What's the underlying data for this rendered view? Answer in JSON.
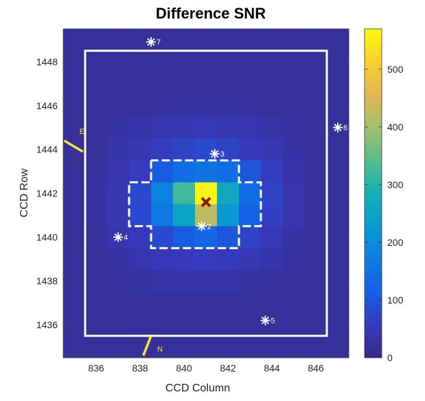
{
  "chart_data": {
    "type": "heatmap",
    "title": "Difference SNR",
    "xlabel": "CCD Column",
    "ylabel": "CCD Row",
    "xlim": [
      834.5,
      847.5
    ],
    "ylim": [
      1434.5,
      1449.5
    ],
    "x_ticks": [
      836,
      838,
      840,
      842,
      844,
      846
    ],
    "y_ticks": [
      1436,
      1438,
      1440,
      1442,
      1444,
      1446,
      1448
    ],
    "colorbar": {
      "ticks": [
        0,
        100,
        200,
        300,
        400,
        500
      ],
      "range": [
        0,
        570
      ]
    },
    "pixel_values": {
      "columns": [
        835,
        836,
        837,
        838,
        839,
        840,
        841,
        842,
        843,
        844,
        845,
        846,
        847
      ],
      "rows": [
        1449,
        1448,
        1447,
        1446,
        1445,
        1444,
        1443,
        1442,
        1441,
        1440,
        1439,
        1438,
        1437,
        1436,
        1435
      ],
      "values": [
        [
          20,
          20,
          20,
          20,
          20,
          20,
          20,
          20,
          20,
          20,
          20,
          20,
          20
        ],
        [
          20,
          20,
          20,
          20,
          20,
          20,
          20,
          20,
          20,
          20,
          20,
          20,
          20
        ],
        [
          20,
          20,
          20,
          20,
          20,
          20,
          20,
          20,
          20,
          20,
          20,
          20,
          20
        ],
        [
          20,
          20,
          20,
          20,
          25,
          28,
          30,
          28,
          25,
          20,
          20,
          20,
          20
        ],
        [
          20,
          20,
          28,
          35,
          40,
          45,
          50,
          45,
          40,
          32,
          25,
          20,
          20
        ],
        [
          20,
          20,
          35,
          45,
          60,
          70,
          80,
          70,
          55,
          45,
          30,
          20,
          20
        ],
        [
          20,
          25,
          40,
          60,
          110,
          140,
          150,
          140,
          100,
          60,
          35,
          20,
          20
        ],
        [
          20,
          30,
          45,
          80,
          180,
          320,
          560,
          260,
          140,
          70,
          40,
          20,
          20
        ],
        [
          20,
          30,
          45,
          80,
          160,
          250,
          420,
          220,
          120,
          65,
          40,
          20,
          20
        ],
        [
          20,
          25,
          40,
          55,
          80,
          110,
          130,
          100,
          70,
          50,
          30,
          20,
          20
        ],
        [
          20,
          20,
          30,
          40,
          50,
          55,
          60,
          55,
          45,
          35,
          25,
          20,
          20
        ],
        [
          20,
          20,
          25,
          28,
          32,
          35,
          35,
          32,
          28,
          25,
          20,
          20,
          20
        ],
        [
          20,
          20,
          20,
          20,
          20,
          20,
          20,
          20,
          20,
          20,
          20,
          20,
          20
        ],
        [
          20,
          20,
          20,
          20,
          20,
          20,
          20,
          20,
          20,
          20,
          20,
          20,
          20
        ],
        [
          20,
          20,
          20,
          20,
          20,
          20,
          20,
          20,
          20,
          20,
          20,
          20,
          20
        ]
      ]
    },
    "outer_box": {
      "x": [
        835.5,
        846.5
      ],
      "y": [
        1435.5,
        1448.5
      ]
    },
    "aperture_outline": [
      [
        838.5,
        1443.5
      ],
      [
        838.5,
        1442.5
      ],
      [
        837.5,
        1442.5
      ],
      [
        837.5,
        1440.5
      ],
      [
        838.5,
        1440.5
      ],
      [
        838.5,
        1439.5
      ],
      [
        842.5,
        1439.5
      ],
      [
        842.5,
        1440.5
      ],
      [
        843.5,
        1440.5
      ],
      [
        843.5,
        1442.5
      ],
      [
        842.5,
        1442.5
      ],
      [
        842.5,
        1443.5
      ],
      [
        838.5,
        1443.5
      ]
    ],
    "centroid": {
      "x": 841.0,
      "y": 1441.6
    },
    "stars": [
      {
        "label": "7",
        "x": 838.5,
        "y": 1448.9
      },
      {
        "label": "6",
        "x": 847.0,
        "y": 1445.0
      },
      {
        "label": "3",
        "x": 841.4,
        "y": 1443.8
      },
      {
        "label": "2",
        "x": 840.8,
        "y": 1440.5
      },
      {
        "label": "4",
        "x": 837.0,
        "y": 1440.0
      },
      {
        "label": "5",
        "x": 843.7,
        "y": 1436.2
      }
    ],
    "compass": [
      {
        "label": "E",
        "x1": 834.55,
        "y1": 1444.4,
        "x2": 835.4,
        "y2": 1443.9
      },
      {
        "label": "N",
        "x1": 838.15,
        "y1": 1434.6,
        "x2": 838.5,
        "y2": 1435.5
      }
    ]
  }
}
